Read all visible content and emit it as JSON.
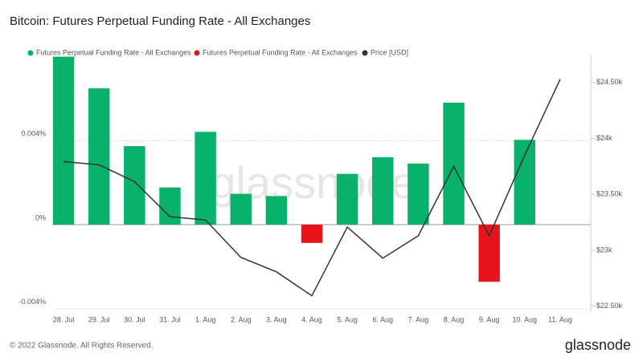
{
  "chart_data": {
    "type": "bar",
    "title": "Bitcoin: Futures Perpetual Funding Rate - All Exchanges",
    "watermark": "glassnode",
    "footer": "© 2022 Glassnode. All Rights Reserved.",
    "logo": "glassnode",
    "categories": [
      "28. Jul",
      "29. Jul",
      "30. Jul",
      "31. Jul",
      "1. Aug",
      "2. Aug",
      "3. Aug",
      "4. Aug",
      "5. Aug",
      "6. Aug",
      "7. Aug",
      "8. Aug",
      "9. Aug",
      "10. Aug",
      "11. Aug"
    ],
    "series": [
      {
        "name": "Futures Perpetual Funding Rate - All Exchanges",
        "color": "#0ab16a",
        "type": "bar",
        "values": [
          0.008,
          0.00649,
          0.00374,
          0.00177,
          0.00442,
          0.00147,
          0.00136,
          null,
          0.00242,
          0.00321,
          0.00291,
          0.00581,
          null,
          0.00404,
          null
        ]
      },
      {
        "name": "Futures Perpetual Funding Rate - All Exchanges",
        "color": "#e8141a",
        "type": "bar",
        "values": [
          null,
          null,
          null,
          null,
          null,
          null,
          null,
          -0.00087,
          null,
          null,
          null,
          null,
          -0.00272,
          null,
          null
        ]
      },
      {
        "name": "Price [USD]",
        "color": "#333333",
        "type": "line",
        "axis": "y2",
        "values": [
          23793,
          23764,
          23614,
          23300,
          23271,
          22936,
          22807,
          22593,
          23207,
          22929,
          23129,
          23750,
          23129,
          23850,
          24529
        ]
      }
    ],
    "ylim": [
      -0.0042,
      0.0081
    ],
    "yticks": [
      {
        "value": -0.004,
        "label": "-0.004%"
      },
      {
        "value": 0,
        "label": "0%"
      },
      {
        "value": 0.004,
        "label": "0.004%"
      }
    ],
    "y2lim": [
      22440,
      24750
    ],
    "y2ticks": [
      {
        "value": 22500,
        "label": "$22.50k"
      },
      {
        "value": 23000,
        "label": "$23k"
      },
      {
        "value": 23500,
        "label": "$23.50k"
      },
      {
        "value": 24000,
        "label": "$24k"
      },
      {
        "value": 24500,
        "label": "$24.50k"
      }
    ],
    "grid": true
  }
}
